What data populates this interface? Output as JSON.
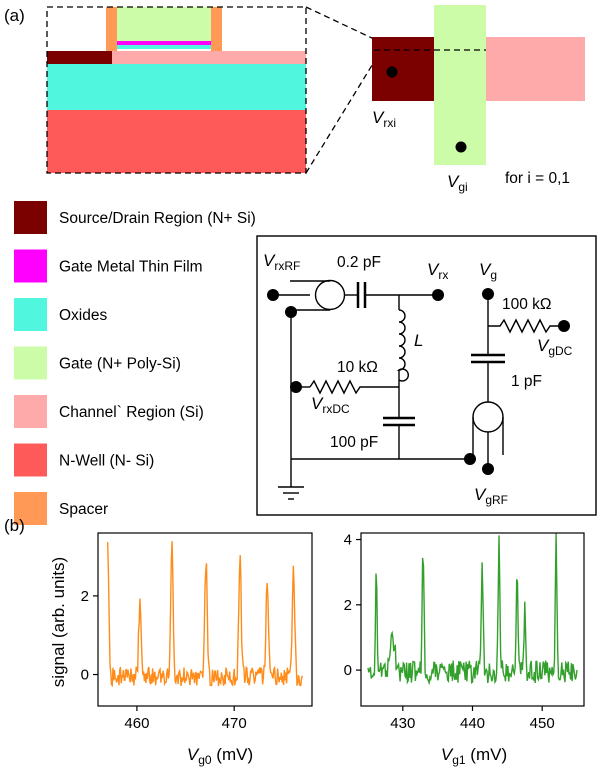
{
  "panel_a_label": "(a)",
  "panel_b_label": "(b)",
  "device_layers": {
    "source_drain": "#7b0000",
    "gate_metal": "#ff00ff",
    "oxides": "#50f7de",
    "gate": "#ccfca7",
    "channel": "#ffaaaa",
    "nwell": "#ff5a5a",
    "spacer": "#ff9955"
  },
  "topview": {
    "vrx_main": "V",
    "vrx_sub": "rxi",
    "vg_main": "V",
    "vg_sub": "gi",
    "for_text": "for i = 0,1"
  },
  "legend": [
    {
      "label": "Source/Drain Region (N+ Si)",
      "color": "#7b0000"
    },
    {
      "label": "Gate Metal Thin Film",
      "color": "#ff00ff"
    },
    {
      "label": "Oxides",
      "color": "#50f7de"
    },
    {
      "label": "Gate (N+ Poly-Si)",
      "color": "#ccfca7"
    },
    {
      "label": "Channel` Region (Si)",
      "color": "#ffaaaa"
    },
    {
      "label": "N-Well (N- Si)",
      "color": "#ff5a5a"
    },
    {
      "label": "Spacer",
      "color": "#ff9955"
    }
  ],
  "circuit": {
    "vrxrf_main": "V",
    "vrxrf_sub": "rxRF",
    "c1": "0.2 pF",
    "vrx_main": "V",
    "vrx_sub": "rx",
    "vg_main": "V",
    "vg_sub": "g",
    "r1": "100 kΩ",
    "vgdc_main": "V",
    "vgdc_sub": "gDC",
    "inductor": "L",
    "r2": "10 kΩ",
    "vrxdc_main": "V",
    "vrxdc_sub": "rxDC",
    "c2": "100 pF",
    "c3": "1 pF",
    "vgrf_main": "V",
    "vgrf_sub": "gRF"
  },
  "chart_data": [
    {
      "type": "line",
      "color": "#ff8c1a",
      "xlim": [
        456,
        478
      ],
      "ylim": [
        -0.8,
        3.6
      ],
      "xticks": [
        "460",
        "470"
      ],
      "xtick_values": [
        460,
        470
      ],
      "yticks": [
        "0",
        "2"
      ],
      "ytick_values": [
        0,
        2
      ],
      "ylabel": "signal (arb. units)",
      "xlabel_main": "V",
      "xlabel_sub": "g0",
      "xlabel_unit": " (mV)",
      "x_range": [
        457,
        477
      ],
      "baseline_noise": 0.25,
      "peaks": [
        {
          "x": 457.0,
          "y": 3.3
        },
        {
          "x": 460.3,
          "y": 1.8
        },
        {
          "x": 463.6,
          "y": 3.4
        },
        {
          "x": 467.1,
          "y": 3.0
        },
        {
          "x": 470.6,
          "y": 3.0
        },
        {
          "x": 473.4,
          "y": 2.6
        },
        {
          "x": 476.1,
          "y": 2.8
        }
      ]
    },
    {
      "type": "line",
      "color": "#33a02c",
      "xlim": [
        424,
        456
      ],
      "ylim": [
        -1.1,
        4.2
      ],
      "xticks": [
        "430",
        "440",
        "450"
      ],
      "xtick_values": [
        430,
        440,
        450
      ],
      "yticks": [
        "0",
        "2",
        "4"
      ],
      "ytick_values": [
        0,
        2,
        4
      ],
      "xlabel_main": "V",
      "xlabel_sub": "g1",
      "xlabel_unit": " (mV)",
      "x_range": [
        425,
        455
      ],
      "baseline_noise": 0.35,
      "peaks": [
        {
          "x": 426.2,
          "y": 3.1
        },
        {
          "x": 428.5,
          "y": 1.0
        },
        {
          "x": 432.9,
          "y": 4.1
        },
        {
          "x": 441.4,
          "y": 3.2
        },
        {
          "x": 443.8,
          "y": 3.9
        },
        {
          "x": 446.4,
          "y": 3.0
        },
        {
          "x": 447.5,
          "y": 1.9
        },
        {
          "x": 452.0,
          "y": 4.1
        }
      ]
    }
  ]
}
